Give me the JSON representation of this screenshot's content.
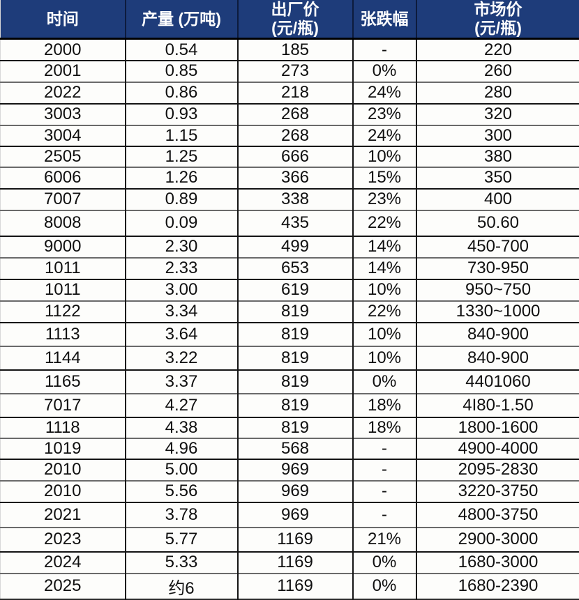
{
  "chart_data": {
    "type": "table",
    "columns": [
      "时间",
      "产量 (万吨)",
      "出厂价\n(元/瓶)",
      "张跌幅",
      "市场价\n(元/瓶)"
    ],
    "rows": [
      [
        "2000",
        "0.54",
        "185",
        "-",
        "220"
      ],
      [
        "2001",
        "0.85",
        "273",
        "0%",
        "260"
      ],
      [
        "2022",
        "0.86",
        "218",
        "24%",
        "280"
      ],
      [
        "3003",
        "0.93",
        "268",
        "23%",
        "320"
      ],
      [
        "3004",
        "1.15",
        "268",
        "24%",
        "300"
      ],
      [
        "2505",
        "1.25",
        "666",
        "10%",
        "380"
      ],
      [
        "6006",
        "1.26",
        "366",
        "15%",
        "350"
      ],
      [
        "7007",
        "0.89",
        "338",
        "23%",
        "400"
      ],
      [
        "8008",
        "0.09",
        "435",
        "22%",
        "50.60"
      ],
      [
        "9000",
        "2.30",
        "499",
        "14%",
        "450-700"
      ],
      [
        "1011",
        "2.33",
        "653",
        "14%",
        "730-950"
      ],
      [
        "1011",
        "3.00",
        "619",
        "10%",
        "950~750"
      ],
      [
        "1122",
        "3.34",
        "819",
        "22%",
        "1330~1000"
      ],
      [
        "1113",
        "3.64",
        "819",
        "10%",
        "840-900"
      ],
      [
        "1144",
        "3.22",
        "819",
        "10%",
        "840-900"
      ],
      [
        "1165",
        "3.37",
        "819",
        "0%",
        "4401060"
      ],
      [
        "7017",
        "4.27",
        "819",
        "18%",
        "4I80-1.50"
      ],
      [
        "1118",
        "4.38",
        "819",
        "18%",
        "1800-1600"
      ],
      [
        "1019",
        "4.96",
        "568",
        "-",
        "4900-4000"
      ],
      [
        "2010",
        "5.00",
        "969",
        "-",
        "2095-2830"
      ],
      [
        "2010",
        "5.56",
        "969",
        "-",
        "3220-3750"
      ],
      [
        "2021",
        "3.78",
        "969",
        "-",
        "4800-3750"
      ],
      [
        "2023",
        "5.77",
        "1169",
        "21%",
        "2900-3000"
      ],
      [
        "2024",
        "5.33",
        "1169",
        "0%",
        "1680-3000"
      ],
      [
        "2025",
        "约6",
        "1169",
        "0%",
        "1680-2390"
      ]
    ],
    "layout": {
      "grid": "on",
      "header_position": "top"
    },
    "colors": {
      "header_bg": "#1e3c7a",
      "header_text": "#ffffff",
      "grid_dark": "#141414",
      "grid_light": "#6a6a6a"
    }
  }
}
